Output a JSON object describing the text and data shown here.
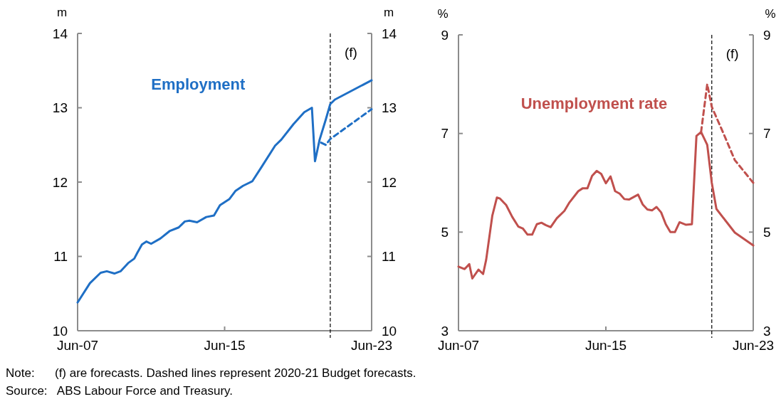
{
  "chart_data": [
    {
      "type": "line",
      "ylabel": "m",
      "y2label": "m",
      "xlim": [
        "2007-06",
        "2023-06"
      ],
      "xticks": [
        {
          "value": "2007-06",
          "label": "Jun-07"
        },
        {
          "value": "2015-06",
          "label": "Jun-15"
        },
        {
          "value": "2023-06",
          "label": "Jun-23"
        }
      ],
      "ylim": [
        10,
        14
      ],
      "yticks": [
        10,
        11,
        12,
        13,
        14
      ],
      "y2lim": [
        10,
        14
      ],
      "y2ticks": [
        10,
        11,
        12,
        13,
        14
      ],
      "ref_lines": [
        {
          "axis": "x",
          "value": "2021-03",
          "label": "(f)",
          "color": "#000000",
          "line_style": "dashed"
        }
      ],
      "series": [
        {
          "name": "Employment",
          "color": "#1f6fc5",
          "line_style": "solid",
          "x": [
            "2007-06",
            "2008-02",
            "2008-09",
            "2009-01",
            "2009-06",
            "2009-10",
            "2010-03",
            "2010-07",
            "2010-09",
            "2010-12",
            "2011-03",
            "2011-06",
            "2011-12",
            "2012-06",
            "2012-12",
            "2013-04",
            "2013-07",
            "2013-12",
            "2014-06",
            "2014-11",
            "2015-03",
            "2015-09",
            "2016-01",
            "2016-06",
            "2016-12",
            "2017-06",
            "2018-03",
            "2018-07",
            "2019-03",
            "2019-10",
            "2020-03",
            "2020-05",
            "2020-08",
            "2020-12",
            "2021-03",
            "2021-06",
            "2023-06"
          ],
          "values": [
            10.38,
            10.64,
            10.78,
            10.8,
            10.77,
            10.8,
            10.91,
            10.97,
            11.05,
            11.16,
            11.2,
            11.17,
            11.24,
            11.34,
            11.39,
            11.47,
            11.48,
            11.46,
            11.53,
            11.55,
            11.69,
            11.77,
            11.88,
            11.95,
            12.01,
            12.2,
            12.49,
            12.57,
            12.78,
            12.94,
            13.0,
            12.28,
            12.57,
            12.84,
            13.05,
            13.11,
            13.37
          ]
        },
        {
          "color": "#1f6fc5",
          "line_style": "dashed",
          "x": [
            "2020-09",
            "2020-12",
            "2021-03",
            "2023-06"
          ],
          "values": [
            12.53,
            12.5,
            12.58,
            12.98
          ]
        }
      ],
      "annotations": [
        "Note:      (f) are forecasts. Dashed lines represent 2020-21 Budget forecasts.",
        "Source:   ABS Labour Force and Treasury."
      ]
    },
    {
      "type": "line",
      "ylabel": "%",
      "y2label": "%",
      "xlim": [
        "2007-06",
        "2023-06"
      ],
      "xticks": [
        {
          "value": "2007-06",
          "label": "Jun-07"
        },
        {
          "value": "2015-06",
          "label": "Jun-15"
        },
        {
          "value": "2023-06",
          "label": "Jun-23"
        }
      ],
      "ylim": [
        3,
        9
      ],
      "yticks": [
        3,
        5,
        7,
        9
      ],
      "y2lim": [
        3,
        9
      ],
      "y2ticks": [
        3,
        5,
        7,
        9
      ],
      "ref_lines": [
        {
          "axis": "x",
          "value": "2021-03",
          "label": "(f)",
          "color": "#000000",
          "line_style": "dashed"
        }
      ],
      "series": [
        {
          "name": "Unemployment rate",
          "color": "#c0504d",
          "line_style": "solid",
          "x": [
            "2007-06",
            "2007-10",
            "2008-01",
            "2008-03",
            "2008-07",
            "2008-10",
            "2008-12",
            "2009-04",
            "2009-07",
            "2009-09",
            "2010-01",
            "2010-05",
            "2010-09",
            "2010-12",
            "2011-03",
            "2011-06",
            "2011-09",
            "2011-12",
            "2012-03",
            "2012-06",
            "2012-10",
            "2013-03",
            "2013-06",
            "2013-12",
            "2014-03",
            "2014-06",
            "2014-09",
            "2014-12",
            "2015-03",
            "2015-06",
            "2015-09",
            "2015-12",
            "2016-03",
            "2016-06",
            "2016-09",
            "2017-03",
            "2017-06",
            "2017-09",
            "2017-12",
            "2018-03",
            "2018-06",
            "2018-09",
            "2018-12",
            "2019-03",
            "2019-06",
            "2019-10",
            "2020-02",
            "2020-05",
            "2020-08",
            "2020-12",
            "2021-03",
            "2021-06",
            "2022-06",
            "2023-06"
          ],
          "values": [
            4.3,
            4.25,
            4.35,
            4.06,
            4.24,
            4.15,
            4.44,
            5.33,
            5.7,
            5.68,
            5.55,
            5.31,
            5.11,
            5.07,
            4.95,
            4.95,
            5.16,
            5.19,
            5.14,
            5.1,
            5.28,
            5.43,
            5.59,
            5.83,
            5.89,
            5.89,
            6.14,
            6.24,
            6.18,
            5.99,
            6.13,
            5.83,
            5.78,
            5.67,
            5.66,
            5.76,
            5.56,
            5.46,
            5.44,
            5.51,
            5.4,
            5.16,
            5.0,
            5.0,
            5.2,
            5.15,
            5.16,
            6.95,
            7.03,
            6.77,
            6.0,
            5.47,
            4.99,
            4.73
          ]
        },
        {
          "color": "#c0504d",
          "line_style": "dashed",
          "x": [
            "2020-08",
            "2020-12",
            "2021-03",
            "2021-11",
            "2022-06",
            "2023-06"
          ],
          "values": [
            7.03,
            8.0,
            7.54,
            6.97,
            6.46,
            6.0
          ]
        }
      ]
    }
  ]
}
